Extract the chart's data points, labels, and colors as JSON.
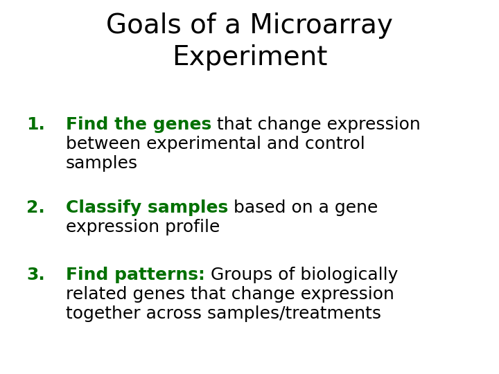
{
  "background_color": "#ffffff",
  "title_line1": "Goals of a Microarray",
  "title_line2": "Experiment",
  "title_color": "#000000",
  "title_fontsize": 28,
  "green_color": "#007000",
  "black_color": "#000000",
  "body_fontsize": 18,
  "figsize": [
    7.2,
    5.4
  ],
  "dpi": 100,
  "items": [
    {
      "number": "1.",
      "bold_text": "Find the genes",
      "line1_plain": " that change expression",
      "extra_lines": [
        "between experimental and control",
        "samples"
      ]
    },
    {
      "number": "2.",
      "bold_text": "Classify samples",
      "line1_plain": " based on a gene",
      "extra_lines": [
        "expression profile"
      ]
    },
    {
      "number": "3.",
      "bold_text": "Find patterns:",
      "line1_plain": " Groups of biologically",
      "extra_lines": [
        "related genes that change expression",
        "together across samples/treatments"
      ]
    }
  ]
}
